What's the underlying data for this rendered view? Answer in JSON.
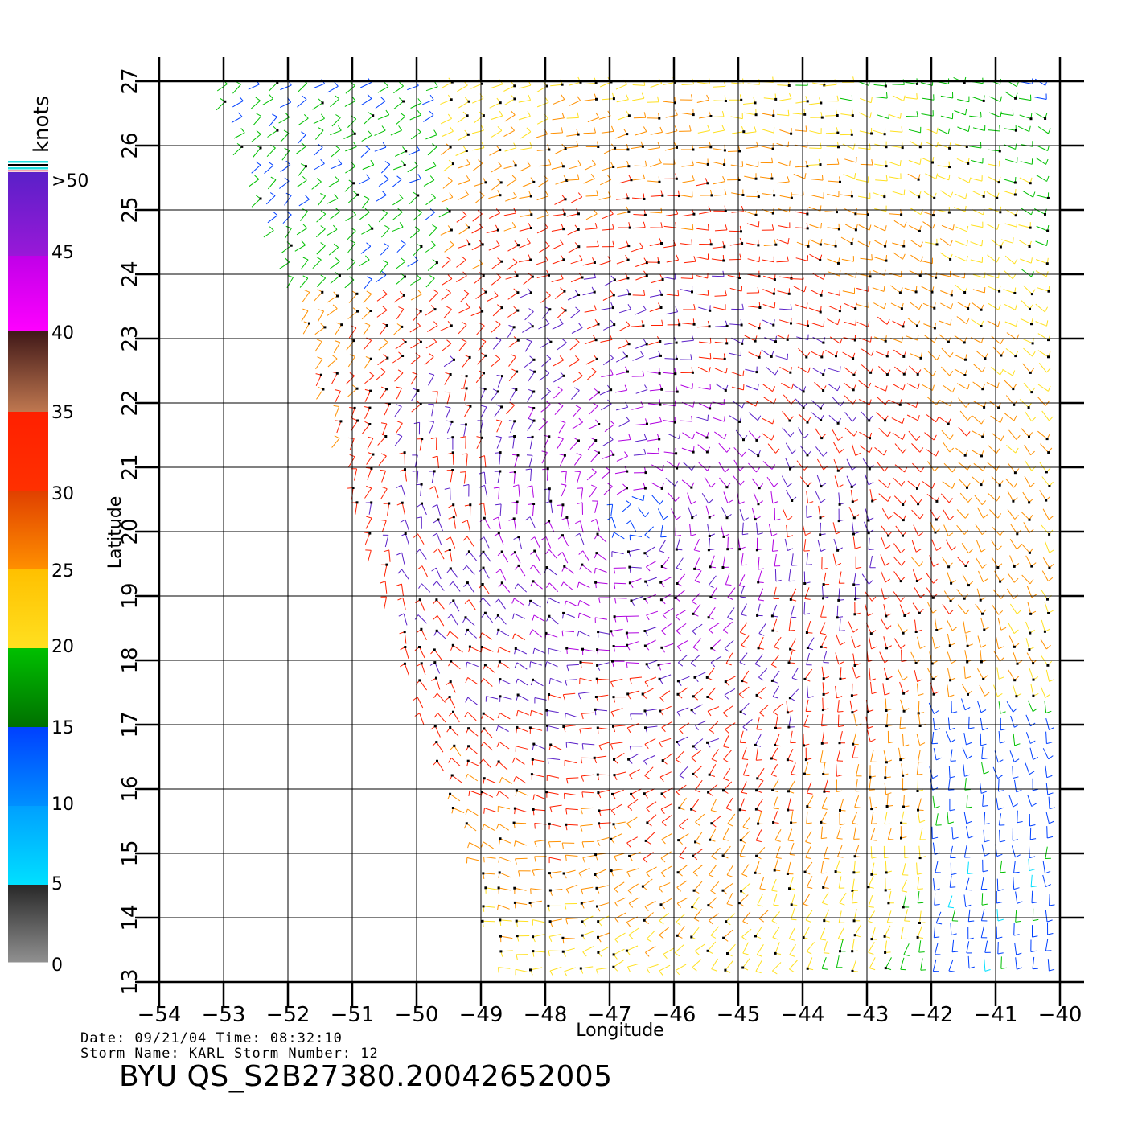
{
  "map": {
    "xlabel": "Longitude",
    "ylabel": "Latitude",
    "lon_ticks": [
      "-54",
      "-53",
      "-52",
      "-51",
      "-50",
      "-49",
      "-48",
      "-47",
      "-46",
      "-45",
      "-44",
      "-43",
      "-42",
      "-41",
      "-40"
    ],
    "lat_ticks": [
      "13",
      "14",
      "15",
      "16",
      "17",
      "18",
      "19",
      "20",
      "21",
      "22",
      "23",
      "24",
      "25",
      "26",
      "27"
    ],
    "lon_range": [
      -54,
      -40
    ],
    "lat_range": [
      13,
      27
    ],
    "grid": true,
    "swath_corners_lonlat": [
      [
        -53.1,
        27
      ],
      [
        -40,
        27
      ],
      [
        -40,
        13
      ],
      [
        -48.7,
        13
      ],
      [
        -52.0,
        24
      ]
    ],
    "storm_center_lonlat": [
      -46.6,
      20.2
    ]
  },
  "legend": {
    "unit": "knots",
    "labels": [
      ">50",
      "45",
      "40",
      "35",
      "30",
      "25",
      "20",
      "15",
      "10",
      "5",
      "0"
    ],
    "colors": {
      "gt50": "#5a20c8",
      "45": "#b000e0",
      "40": "#ff00ff",
      "35": "#c07850",
      "30": "#ff2000",
      "25": "#ff9000",
      "20": "#ffe020",
      "15": "#00c000",
      "10": "#0040ff",
      "5": "#00e0ff",
      "0": "#404040"
    }
  },
  "footer": {
    "line1": "Date: 09/21/04   Time: 08:32:10",
    "line2": "Storm Name: KARL   Storm Number: 12",
    "title": "BYU  QS_S2B27380.20042652005"
  }
}
